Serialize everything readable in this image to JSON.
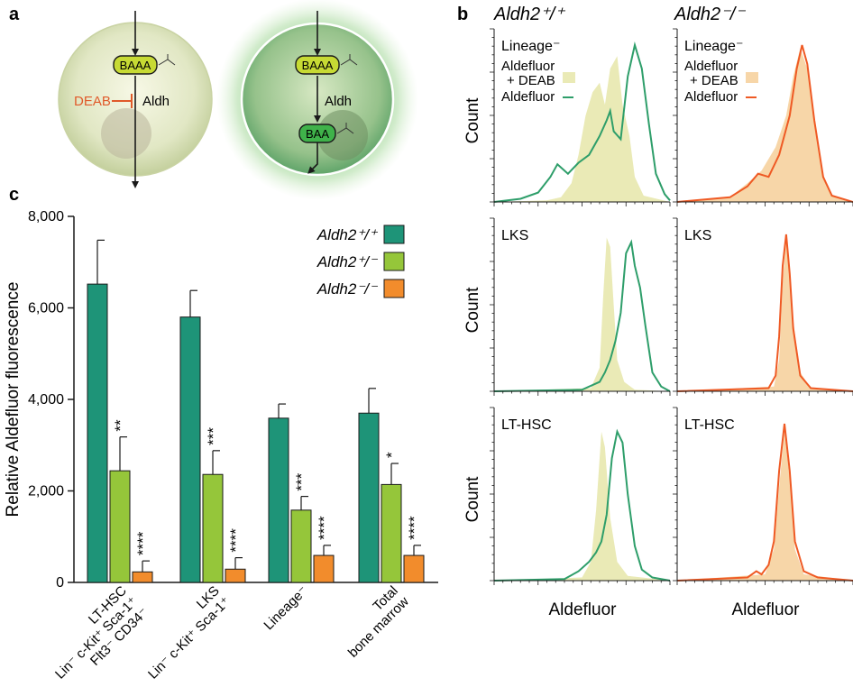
{
  "panel_labels": {
    "a": "a",
    "b": "b",
    "c": "c"
  },
  "colors": {
    "wt": "#1e9478",
    "het": "#95c63a",
    "ko": "#f28c2c",
    "facs_wt_line": "#2e9e6a",
    "facs_ko_line": "#ef5a24",
    "deab_fill": "#eaeab6",
    "deab_fill_ko": "#f7d6a8",
    "deab_label": "#e05a2a"
  },
  "diagram": {
    "left_cell": {
      "substrate": "BAAA",
      "enzyme": "Aldh",
      "inhibitor": "DEAB"
    },
    "right_cell": {
      "substrate": "BAAA",
      "enzyme": "Aldh",
      "product": "BAA"
    }
  },
  "chart_data": [
    {
      "type": "bar",
      "panel": "c",
      "ylabel": "Relative Aldefluor fluorescence",
      "ylim": [
        0,
        8000
      ],
      "yticks": [
        "0",
        "2,000",
        "4,000",
        "6,000",
        "8,000"
      ],
      "categories": [
        [
          "LT-HSC",
          "Lin⁻ c-Kit⁺ Sca-1⁺",
          "Flt3⁻ CD34⁻"
        ],
        [
          "LKS",
          "Lin⁻ c-Kit⁺ Sca-1⁺"
        ],
        [
          "Lineage⁻"
        ],
        [
          "Total",
          "bone marrow"
        ]
      ],
      "series": [
        {
          "name": "Aldh2⁺/⁺",
          "values": [
            6520,
            5800,
            3590,
            3700
          ],
          "errors": [
            960,
            580,
            310,
            540
          ],
          "sig": [
            "",
            "",
            "",
            ""
          ]
        },
        {
          "name": "Aldh2⁺/⁻",
          "values": [
            2440,
            2360,
            1580,
            2140
          ],
          "errors": [
            740,
            520,
            300,
            460
          ],
          "sig": [
            "**",
            "***",
            "***",
            "*"
          ]
        },
        {
          "name": "Aldh2⁻/⁻",
          "values": [
            230,
            290,
            590,
            590
          ],
          "errors": [
            240,
            250,
            220,
            220
          ],
          "sig": [
            "****",
            "****",
            "****",
            "****"
          ]
        }
      ],
      "legend": "top-right"
    },
    {
      "type": "area",
      "panel": "b",
      "columns": [
        "Aldh2⁺/⁺",
        "Aldh2⁻/⁻"
      ],
      "rows": [
        "Lineage⁻",
        "LKS",
        "LT-HSC"
      ],
      "xlabel": "Aldefluor",
      "ylabel": "Count",
      "legend_items": [
        "Aldefluor\n+ DEAB",
        "Aldefluor"
      ],
      "x_range": [
        0,
        1
      ],
      "histograms": {
        "wt": [
          {
            "deab": [
              [
                0,
                0
              ],
              [
                0.3,
                0.01
              ],
              [
                0.38,
                0.03
              ],
              [
                0.44,
                0.12
              ],
              [
                0.48,
                0.3
              ],
              [
                0.52,
                0.55
              ],
              [
                0.56,
                0.7
              ],
              [
                0.6,
                0.76
              ],
              [
                0.63,
                0.62
              ],
              [
                0.66,
                0.85
              ],
              [
                0.7,
                0.93
              ],
              [
                0.73,
                0.62
              ],
              [
                0.77,
                0.42
              ],
              [
                0.8,
                0.16
              ],
              [
                0.85,
                0.04
              ],
              [
                1,
                0
              ]
            ],
            "stain": [
              [
                0,
                0
              ],
              [
                0.15,
                0.02
              ],
              [
                0.25,
                0.06
              ],
              [
                0.32,
                0.16
              ],
              [
                0.36,
                0.24
              ],
              [
                0.42,
                0.18
              ],
              [
                0.48,
                0.25
              ],
              [
                0.54,
                0.3
              ],
              [
                0.6,
                0.42
              ],
              [
                0.64,
                0.52
              ],
              [
                0.66,
                0.58
              ],
              [
                0.68,
                0.45
              ],
              [
                0.72,
                0.4
              ],
              [
                0.76,
                0.8
              ],
              [
                0.8,
                1.0
              ],
              [
                0.84,
                0.85
              ],
              [
                0.88,
                0.5
              ],
              [
                0.92,
                0.18
              ],
              [
                0.97,
                0.05
              ],
              [
                1,
                0.01
              ]
            ]
          },
          {
            "deab": [
              [
                0,
                0
              ],
              [
                0.55,
                0.02
              ],
              [
                0.6,
                0.15
              ],
              [
                0.62,
                0.6
              ],
              [
                0.64,
                0.98
              ],
              [
                0.66,
                0.92
              ],
              [
                0.68,
                0.55
              ],
              [
                0.7,
                0.2
              ],
              [
                0.74,
                0.06
              ],
              [
                0.8,
                0.01
              ],
              [
                1,
                0
              ]
            ],
            "stain": [
              [
                0,
                0
              ],
              [
                0.5,
                0.01
              ],
              [
                0.6,
                0.06
              ],
              [
                0.63,
                0.12
              ],
              [
                0.66,
                0.2
              ],
              [
                0.69,
                0.32
              ],
              [
                0.72,
                0.5
              ],
              [
                0.75,
                0.88
              ],
              [
                0.78,
                0.95
              ],
              [
                0.8,
                0.8
              ],
              [
                0.83,
                0.66
              ],
              [
                0.86,
                0.42
              ],
              [
                0.9,
                0.12
              ],
              [
                0.95,
                0.03
              ],
              [
                1,
                0
              ]
            ]
          },
          {
            "deab": [
              [
                0,
                0
              ],
              [
                0.5,
                0.02
              ],
              [
                0.55,
                0.12
              ],
              [
                0.58,
                0.45
              ],
              [
                0.61,
                0.95
              ],
              [
                0.63,
                0.85
              ],
              [
                0.66,
                0.4
              ],
              [
                0.7,
                0.12
              ],
              [
                0.76,
                0.03
              ],
              [
                1,
                0
              ]
            ],
            "stain": [
              [
                0,
                0
              ],
              [
                0.4,
                0.01
              ],
              [
                0.48,
                0.06
              ],
              [
                0.54,
                0.12
              ],
              [
                0.58,
                0.18
              ],
              [
                0.61,
                0.25
              ],
              [
                0.64,
                0.42
              ],
              [
                0.67,
                0.78
              ],
              [
                0.7,
                0.95
              ],
              [
                0.73,
                0.88
              ],
              [
                0.76,
                0.55
              ],
              [
                0.8,
                0.22
              ],
              [
                0.84,
                0.07
              ],
              [
                0.9,
                0.02
              ],
              [
                1,
                0
              ]
            ]
          }
        ],
        "ko": [
          {
            "deab": [
              [
                0,
                0
              ],
              [
                0.3,
                0.03
              ],
              [
                0.4,
                0.12
              ],
              [
                0.48,
                0.2
              ],
              [
                0.56,
                0.35
              ],
              [
                0.62,
                0.55
              ],
              [
                0.66,
                0.8
              ],
              [
                0.7,
                0.98
              ],
              [
                0.74,
                0.85
              ],
              [
                0.78,
                0.5
              ],
              [
                0.83,
                0.15
              ],
              [
                0.88,
                0.04
              ],
              [
                1,
                0
              ]
            ],
            "stain": [
              [
                0,
                0
              ],
              [
                0.3,
                0.03
              ],
              [
                0.4,
                0.1
              ],
              [
                0.46,
                0.18
              ],
              [
                0.52,
                0.16
              ],
              [
                0.58,
                0.3
              ],
              [
                0.64,
                0.55
              ],
              [
                0.68,
                0.85
              ],
              [
                0.71,
                1.0
              ],
              [
                0.74,
                0.88
              ],
              [
                0.78,
                0.52
              ],
              [
                0.83,
                0.16
              ],
              [
                0.88,
                0.04
              ],
              [
                1,
                0
              ]
            ]
          },
          {
            "deab": [
              [
                0,
                0
              ],
              [
                0.55,
                0.03
              ],
              [
                0.58,
                0.2
              ],
              [
                0.6,
                0.7
              ],
              [
                0.62,
                0.98
              ],
              [
                0.64,
                0.8
              ],
              [
                0.66,
                0.45
              ],
              [
                0.7,
                0.12
              ],
              [
                0.76,
                0.02
              ],
              [
                1,
                0
              ]
            ],
            "stain": [
              [
                0,
                0
              ],
              [
                0.52,
                0.02
              ],
              [
                0.56,
                0.1
              ],
              [
                0.58,
                0.35
              ],
              [
                0.6,
                0.8
              ],
              [
                0.62,
                1.0
              ],
              [
                0.64,
                0.75
              ],
              [
                0.66,
                0.4
              ],
              [
                0.7,
                0.1
              ],
              [
                0.76,
                0.02
              ],
              [
                1,
                0
              ]
            ]
          },
          {
            "deab": [
              [
                0,
                0
              ],
              [
                0.5,
                0.04
              ],
              [
                0.55,
                0.2
              ],
              [
                0.58,
                0.6
              ],
              [
                0.61,
                0.95
              ],
              [
                0.64,
                0.65
              ],
              [
                0.67,
                0.2
              ],
              [
                0.72,
                0.04
              ],
              [
                1,
                0
              ]
            ],
            "stain": [
              [
                0,
                0
              ],
              [
                0.4,
                0.02
              ],
              [
                0.45,
                0.06
              ],
              [
                0.48,
                0.04
              ],
              [
                0.52,
                0.1
              ],
              [
                0.55,
                0.25
              ],
              [
                0.58,
                0.7
              ],
              [
                0.61,
                1.0
              ],
              [
                0.64,
                0.7
              ],
              [
                0.67,
                0.25
              ],
              [
                0.72,
                0.06
              ],
              [
                0.8,
                0.02
              ],
              [
                1,
                0
              ]
            ]
          }
        ]
      }
    }
  ]
}
